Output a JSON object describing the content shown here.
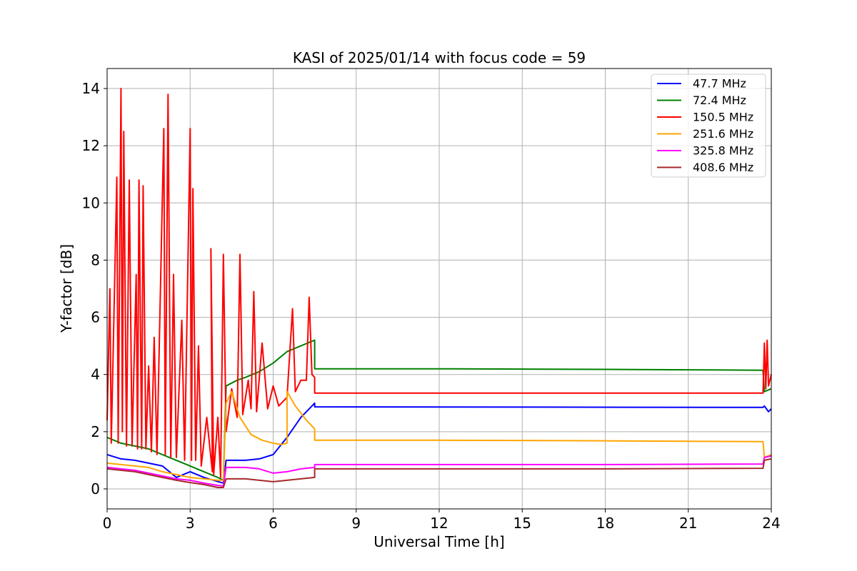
{
  "chart_data": {
    "type": "line",
    "title": "KASI of 2025/01/14 with focus code = 59",
    "xlabel": "Universal Time [h]",
    "ylabel": "Y-factor [dB]",
    "xlim": [
      0,
      24
    ],
    "ylim": [
      -0.7,
      14.7
    ],
    "xticks": [
      "0",
      "3",
      "6",
      "9",
      "12",
      "15",
      "18",
      "21",
      "24"
    ],
    "yticks": [
      "0",
      "2",
      "4",
      "6",
      "8",
      "10",
      "12",
      "14"
    ],
    "grid": true,
    "legend_position": "top-right",
    "series": [
      {
        "name": " 47.7 MHz",
        "color": "#0000ff",
        "points": [
          [
            0,
            1.2
          ],
          [
            0.5,
            1.05
          ],
          [
            1,
            1.0
          ],
          [
            1.5,
            0.9
          ],
          [
            2,
            0.8
          ],
          [
            2.5,
            0.4
          ],
          [
            3,
            0.6
          ],
          [
            3.5,
            0.4
          ],
          [
            4.2,
            0.2
          ],
          [
            4.3,
            1.0
          ],
          [
            5,
            1.0
          ],
          [
            5.5,
            1.05
          ],
          [
            6,
            1.2
          ],
          [
            6.5,
            1.8
          ],
          [
            7,
            2.5
          ],
          [
            7.5,
            3.0
          ],
          [
            7.5,
            2.87
          ],
          [
            23.7,
            2.85
          ],
          [
            23.75,
            2.9
          ],
          [
            23.9,
            2.7
          ],
          [
            24,
            2.8
          ]
        ]
      },
      {
        "name": " 72.4 MHz",
        "color": "#008000",
        "points": [
          [
            0,
            1.8
          ],
          [
            0.5,
            1.6
          ],
          [
            1,
            1.5
          ],
          [
            1.5,
            1.4
          ],
          [
            2,
            1.2
          ],
          [
            2.5,
            1.0
          ],
          [
            3,
            0.8
          ],
          [
            3.5,
            0.6
          ],
          [
            4,
            0.4
          ],
          [
            4.2,
            0.3
          ],
          [
            4.3,
            3.6
          ],
          [
            4.7,
            3.8
          ],
          [
            5,
            3.9
          ],
          [
            5.5,
            4.1
          ],
          [
            6,
            4.4
          ],
          [
            6.5,
            4.8
          ],
          [
            7,
            5.0
          ],
          [
            7.5,
            5.2
          ],
          [
            7.5,
            4.2
          ],
          [
            12,
            4.2
          ],
          [
            18,
            4.18
          ],
          [
            23.7,
            4.15
          ],
          [
            23.75,
            3.4
          ],
          [
            24,
            3.5
          ]
        ]
      },
      {
        "name": "150.5 MHz",
        "color": "#ff0000",
        "points": [
          [
            0,
            2.4
          ],
          [
            0.1,
            7.0
          ],
          [
            0.15,
            1.6
          ],
          [
            0.35,
            10.9
          ],
          [
            0.4,
            1.6
          ],
          [
            0.5,
            14.0
          ],
          [
            0.55,
            2.0
          ],
          [
            0.6,
            12.5
          ],
          [
            0.7,
            1.5
          ],
          [
            0.8,
            10.8
          ],
          [
            0.9,
            1.5
          ],
          [
            1.05,
            7.5
          ],
          [
            1.1,
            1.4
          ],
          [
            1.15,
            10.8
          ],
          [
            1.25,
            1.4
          ],
          [
            1.3,
            10.6
          ],
          [
            1.4,
            1.4
          ],
          [
            1.5,
            4.3
          ],
          [
            1.6,
            1.3
          ],
          [
            1.7,
            5.3
          ],
          [
            1.8,
            1.2
          ],
          [
            2.05,
            12.6
          ],
          [
            2.1,
            1.2
          ],
          [
            2.2,
            13.8
          ],
          [
            2.3,
            1.1
          ],
          [
            2.4,
            7.5
          ],
          [
            2.5,
            1.1
          ],
          [
            2.7,
            5.9
          ],
          [
            2.8,
            1.0
          ],
          [
            3.0,
            12.6
          ],
          [
            3.05,
            1.0
          ],
          [
            3.1,
            10.5
          ],
          [
            3.2,
            1.0
          ],
          [
            3.3,
            5.0
          ],
          [
            3.4,
            0.8
          ],
          [
            3.6,
            2.5
          ],
          [
            3.8,
            0.6
          ],
          [
            3.75,
            8.4
          ],
          [
            3.85,
            0.5
          ],
          [
            4.0,
            2.5
          ],
          [
            4.1,
            0.4
          ],
          [
            4.2,
            8.2
          ],
          [
            4.3,
            2.0
          ],
          [
            4.5,
            3.5
          ],
          [
            4.7,
            2.5
          ],
          [
            4.8,
            8.2
          ],
          [
            4.9,
            2.6
          ],
          [
            5.1,
            3.8
          ],
          [
            5.2,
            2.8
          ],
          [
            5.3,
            6.9
          ],
          [
            5.4,
            2.7
          ],
          [
            5.6,
            5.1
          ],
          [
            5.8,
            2.8
          ],
          [
            6.0,
            3.6
          ],
          [
            6.2,
            2.9
          ],
          [
            6.5,
            3.2
          ],
          [
            6.7,
            6.3
          ],
          [
            6.8,
            3.4
          ],
          [
            7.0,
            3.8
          ],
          [
            7.2,
            3.8
          ],
          [
            7.3,
            6.7
          ],
          [
            7.4,
            4.0
          ],
          [
            7.5,
            3.9
          ],
          [
            7.5,
            3.35
          ],
          [
            12,
            3.35
          ],
          [
            18,
            3.35
          ],
          [
            23.7,
            3.35
          ],
          [
            23.75,
            5.1
          ],
          [
            23.8,
            3.5
          ],
          [
            23.85,
            5.2
          ],
          [
            23.9,
            3.6
          ],
          [
            24,
            4.0
          ]
        ]
      },
      {
        "name": "251.6 MHz",
        "color": "#ffa500",
        "points": [
          [
            0,
            0.9
          ],
          [
            0.5,
            0.85
          ],
          [
            1,
            0.8
          ],
          [
            1.5,
            0.75
          ],
          [
            2,
            0.6
          ],
          [
            2.5,
            0.5
          ],
          [
            3,
            0.4
          ],
          [
            3.5,
            0.35
          ],
          [
            4,
            0.3
          ],
          [
            4.2,
            0.3
          ],
          [
            4.3,
            3.0
          ],
          [
            4.5,
            3.4
          ],
          [
            4.8,
            2.5
          ],
          [
            5.2,
            1.9
          ],
          [
            5.6,
            1.7
          ],
          [
            6,
            1.6
          ],
          [
            6.3,
            1.55
          ],
          [
            6.5,
            1.6
          ],
          [
            6.5,
            3.4
          ],
          [
            6.8,
            2.9
          ],
          [
            7.2,
            2.4
          ],
          [
            7.5,
            2.1
          ],
          [
            7.5,
            1.7
          ],
          [
            12,
            1.7
          ],
          [
            18,
            1.68
          ],
          [
            23.7,
            1.65
          ],
          [
            23.75,
            1.1
          ],
          [
            24,
            1.2
          ]
        ]
      },
      {
        "name": "325.8 MHz",
        "color": "#ff00ff",
        "points": [
          [
            0,
            0.75
          ],
          [
            0.5,
            0.7
          ],
          [
            1,
            0.65
          ],
          [
            1.5,
            0.55
          ],
          [
            2,
            0.45
          ],
          [
            2.5,
            0.35
          ],
          [
            3,
            0.3
          ],
          [
            3.5,
            0.2
          ],
          [
            4,
            0.12
          ],
          [
            4.2,
            0.1
          ],
          [
            4.3,
            0.75
          ],
          [
            5,
            0.75
          ],
          [
            5.5,
            0.7
          ],
          [
            6,
            0.55
          ],
          [
            6.5,
            0.6
          ],
          [
            7,
            0.7
          ],
          [
            7.5,
            0.75
          ],
          [
            7.5,
            0.85
          ],
          [
            12,
            0.85
          ],
          [
            18,
            0.85
          ],
          [
            23.7,
            0.87
          ],
          [
            23.75,
            1.1
          ],
          [
            24,
            1.15
          ]
        ]
      },
      {
        "name": "408.6 MHz",
        "color": "#a52a2a",
        "points": [
          [
            0,
            0.7
          ],
          [
            0.5,
            0.65
          ],
          [
            1,
            0.6
          ],
          [
            1.5,
            0.5
          ],
          [
            2,
            0.4
          ],
          [
            2.5,
            0.3
          ],
          [
            3,
            0.22
          ],
          [
            3.5,
            0.15
          ],
          [
            4,
            0.05
          ],
          [
            4.2,
            0.05
          ],
          [
            4.3,
            0.35
          ],
          [
            5,
            0.35
          ],
          [
            5.5,
            0.3
          ],
          [
            6,
            0.25
          ],
          [
            6.5,
            0.3
          ],
          [
            7,
            0.35
          ],
          [
            7.5,
            0.4
          ],
          [
            7.5,
            0.7
          ],
          [
            12,
            0.7
          ],
          [
            18,
            0.7
          ],
          [
            23.7,
            0.72
          ],
          [
            23.75,
            1.0
          ],
          [
            24,
            1.05
          ]
        ]
      }
    ]
  }
}
